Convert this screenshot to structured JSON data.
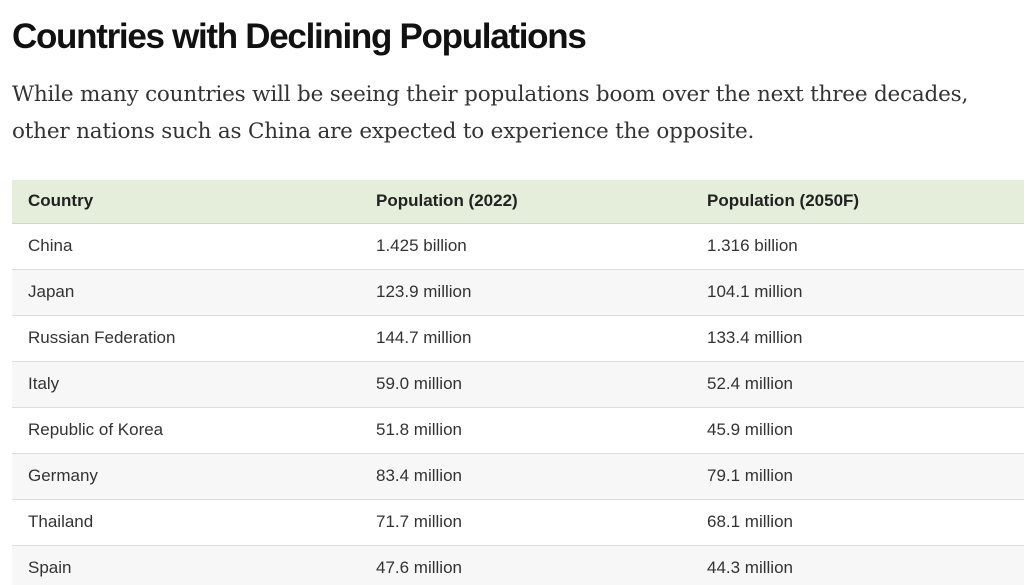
{
  "article": {
    "title": "Countries with Declining Populations",
    "intro": "While many countries will be seeing their populations boom over the next three decades, other nations such as China are expected to experience the opposite."
  },
  "table": {
    "headers": [
      "Country",
      "Population (2022)",
      "Population (2050F)"
    ],
    "rows": [
      [
        "China",
        "1.425 billion",
        "1.316 billion"
      ],
      [
        "Japan",
        "123.9 million",
        "104.1 million"
      ],
      [
        "Russian Federation",
        "144.7 million",
        "133.4 million"
      ],
      [
        "Italy",
        "59.0 million",
        "52.4 million"
      ],
      [
        "Republic of Korea",
        "51.8 million",
        "45.9 million"
      ],
      [
        "Germany",
        "83.4 million",
        "79.1 million"
      ],
      [
        "Thailand",
        "71.7 million",
        "68.1 million"
      ],
      [
        "Spain",
        "47.6 million",
        "44.3 million"
      ]
    ]
  },
  "colors": {
    "header_bg": "#e4eedb",
    "stripe_bg": "#f7f7f7"
  }
}
